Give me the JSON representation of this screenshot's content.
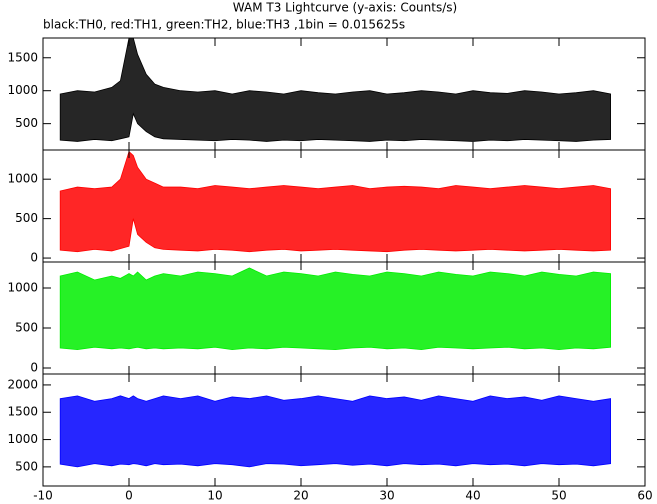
{
  "chart_data": {
    "type": "range-area",
    "title": "WAM T3 Lightcurve (y-axis: Counts/s)",
    "subtitle": "black:TH0, red:TH1, green:TH2, blue:TH3 ,1bin = 0.015625s",
    "x": [
      -8,
      -6,
      -4,
      -2,
      -1,
      0,
      0.5,
      1,
      2,
      3,
      4,
      6,
      8,
      10,
      12,
      14,
      16,
      18,
      20,
      22,
      24,
      26,
      28,
      30,
      32,
      34,
      36,
      38,
      40,
      42,
      44,
      46,
      48,
      50,
      52,
      54,
      56
    ],
    "xlim": [
      -10,
      60
    ],
    "xticks": [
      -10,
      0,
      10,
      20,
      30,
      40,
      50,
      60
    ],
    "panels": [
      {
        "color": "#000000",
        "ylim": [
          100,
          1800
        ],
        "yticks": [
          500,
          1000,
          1500
        ],
        "low": [
          250,
          230,
          260,
          240,
          270,
          300,
          650,
          500,
          380,
          300,
          270,
          260,
          250,
          240,
          260,
          250,
          230,
          250,
          240,
          260,
          250,
          240,
          230,
          250,
          240,
          260,
          250,
          240,
          230,
          250,
          240,
          260,
          250,
          240,
          230,
          250,
          260
        ],
        "high": [
          950,
          1000,
          980,
          1050,
          1150,
          1800,
          1800,
          1550,
          1250,
          1100,
          1050,
          1000,
          980,
          1000,
          950,
          1000,
          980,
          950,
          1000,
          970,
          950,
          980,
          1000,
          950,
          970,
          1000,
          980,
          950,
          1000,
          970,
          960,
          1000,
          980,
          950,
          970,
          1000,
          950
        ]
      },
      {
        "color": "#ff0000",
        "ylim": [
          -50,
          1370
        ],
        "yticks": [
          0,
          500,
          1000
        ],
        "low": [
          100,
          80,
          110,
          90,
          120,
          150,
          500,
          300,
          200,
          130,
          110,
          100,
          90,
          110,
          100,
          80,
          100,
          110,
          90,
          100,
          110,
          100,
          90,
          80,
          100,
          110,
          100,
          90,
          100,
          110,
          100,
          90,
          100,
          110,
          100,
          90,
          100
        ],
        "high": [
          850,
          900,
          880,
          900,
          1000,
          1350,
          1300,
          1150,
          1000,
          950,
          900,
          900,
          880,
          920,
          900,
          880,
          900,
          920,
          900,
          880,
          900,
          920,
          880,
          900,
          910,
          900,
          880,
          920,
          900,
          880,
          900,
          920,
          900,
          880,
          900,
          920,
          880
        ]
      },
      {
        "color": "#00ee00",
        "ylim": [
          -75,
          1325
        ],
        "yticks": [
          0,
          500,
          1000
        ],
        "low": [
          250,
          230,
          260,
          240,
          250,
          240,
          250,
          260,
          240,
          250,
          240,
          250,
          240,
          260,
          230,
          250,
          240,
          260,
          250,
          240,
          230,
          250,
          260,
          240,
          250,
          230,
          260,
          250,
          240,
          250,
          260,
          240,
          250,
          230,
          250,
          240,
          260
        ],
        "high": [
          1150,
          1200,
          1100,
          1150,
          1120,
          1180,
          1150,
          1200,
          1100,
          1150,
          1180,
          1150,
          1200,
          1180,
          1150,
          1250,
          1150,
          1200,
          1180,
          1150,
          1200,
          1170,
          1150,
          1200,
          1180,
          1150,
          1200,
          1170,
          1150,
          1200,
          1180,
          1150,
          1200,
          1170,
          1150,
          1200,
          1180
        ]
      },
      {
        "color": "#0000ff",
        "ylim": [
          150,
          2200
        ],
        "yticks": [
          500,
          1000,
          1500,
          2000
        ],
        "low": [
          550,
          500,
          560,
          520,
          550,
          540,
          560,
          550,
          520,
          560,
          540,
          550,
          520,
          560,
          540,
          500,
          560,
          550,
          520,
          540,
          560,
          530,
          550,
          520,
          560,
          540,
          550,
          520,
          560,
          540,
          550,
          520,
          560,
          540,
          550,
          520,
          560
        ],
        "high": [
          1750,
          1800,
          1700,
          1750,
          1800,
          1750,
          1800,
          1750,
          1700,
          1750,
          1800,
          1750,
          1800,
          1700,
          1780,
          1750,
          1800,
          1720,
          1750,
          1800,
          1750,
          1700,
          1800,
          1750,
          1780,
          1720,
          1800,
          1750,
          1700,
          1800,
          1750,
          1780,
          1720,
          1800,
          1750,
          1700,
          1750
        ]
      }
    ]
  }
}
